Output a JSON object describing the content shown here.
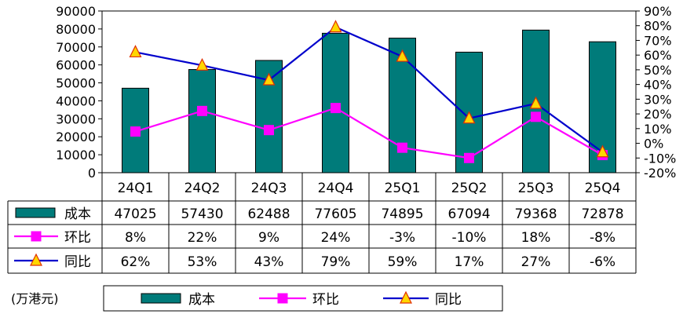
{
  "chart_data": {
    "type": "bar",
    "categories": [
      "24Q1",
      "24Q2",
      "24Q3",
      "24Q4",
      "25Q1",
      "25Q2",
      "25Q3",
      "25Q4"
    ],
    "y_left": {
      "min": 0,
      "max": 90000,
      "step": 10000,
      "ticks": [
        "0",
        "10000",
        "20000",
        "30000",
        "40000",
        "50000",
        "60000",
        "70000",
        "80000",
        "90000"
      ]
    },
    "y_right": {
      "min": -20,
      "max": 90,
      "step": 10,
      "ticks": [
        "-20%",
        "-10%",
        "0%",
        "10%",
        "20%",
        "30%",
        "40%",
        "50%",
        "60%",
        "70%",
        "80%",
        "90%"
      ]
    },
    "series": [
      {
        "name": "成本",
        "kind": "bar",
        "color": "#007b7a",
        "values": [
          47025,
          57430,
          62488,
          77605,
          74895,
          67094,
          79368,
          72878
        ],
        "labels": [
          "47025",
          "57430",
          "62488",
          "77605",
          "74895",
          "67094",
          "79368",
          "72878"
        ]
      },
      {
        "name": "环比",
        "kind": "line",
        "axis": "right",
        "color": "#ff00ff",
        "marker": "square",
        "values": [
          8,
          22,
          9,
          24,
          -3,
          -10,
          18,
          -8
        ],
        "labels": [
          "8%",
          "22%",
          "9%",
          "24%",
          "-3%",
          "-10%",
          "18%",
          "-8%"
        ]
      },
      {
        "name": "同比",
        "kind": "line",
        "axis": "right",
        "color": "#0000cc",
        "marker": "triangle",
        "marker_color": "#ffd700",
        "values": [
          62,
          53,
          43,
          79,
          59,
          17,
          27,
          -6
        ],
        "labels": [
          "62%",
          "53%",
          "43%",
          "79%",
          "59%",
          "17%",
          "27%",
          "-6%"
        ]
      }
    ],
    "unit_note": "(万港元)"
  }
}
